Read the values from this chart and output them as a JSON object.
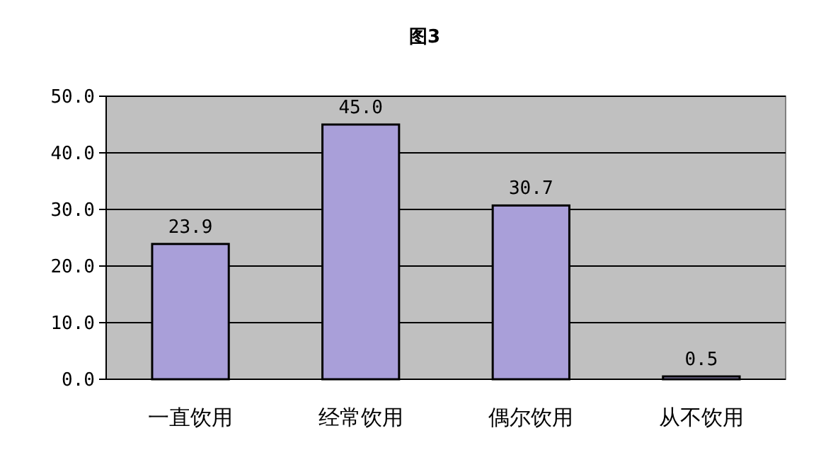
{
  "chart_data": {
    "type": "bar",
    "title": "图3",
    "categories": [
      "一直饮用",
      "经常饮用",
      "偶尔饮用",
      "从不饮用"
    ],
    "values": [
      23.9,
      45.0,
      30.7,
      0.5
    ],
    "value_labels": [
      "23.9",
      "45.0",
      "30.7",
      "0.5"
    ],
    "color": "#a99fd9",
    "ylim": [
      0,
      50
    ],
    "yticks": [
      {
        "value": 0,
        "label": "0.0"
      },
      {
        "value": 10,
        "label": "10.0"
      },
      {
        "value": 20,
        "label": "20.0"
      },
      {
        "value": 30,
        "label": "30.0"
      },
      {
        "value": 40,
        "label": "40.0"
      },
      {
        "value": 50,
        "label": "50.0"
      }
    ],
    "grid": "y"
  }
}
